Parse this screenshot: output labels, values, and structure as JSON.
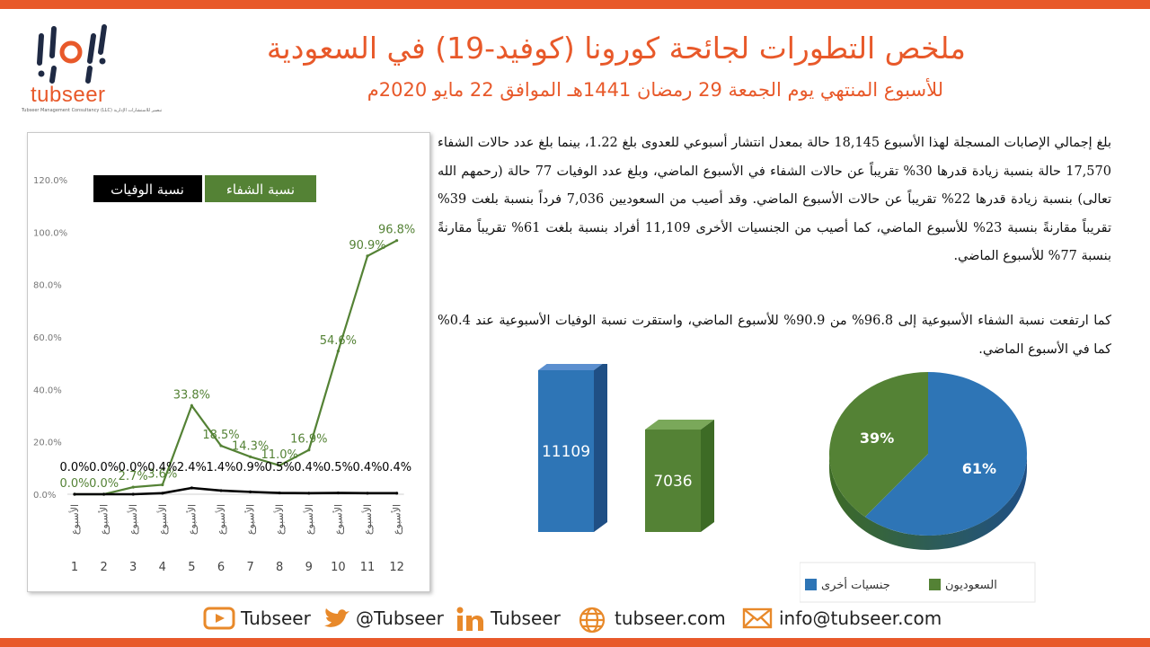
{
  "brand": {
    "name": "tubseer",
    "tagline": "Tubseer Management Consultancy (LLC) تبصير للاستشارات الإدارية"
  },
  "header": {
    "title": "ملخص التطورات لجائحة كورونا (كوفيد-19) في السعودية",
    "subtitle": "للأسبوع المنتهي يوم الجمعة 29 رمضان 1441هـ الموافق 22 مايو 2020م"
  },
  "body": {
    "paragraph1": "بلغ إجمالي الإصابات المسجلة لهذا الأسبوع 18,145 حالة بمعدل انتشار أسبوعي للعدوى بلغ 1.22، بينما بلغ عدد حالات الشفاء 17,570 حالة بنسبة زيادة قدرها 30% تقريباً عن حالات الشفاء في الأسبوع الماضي، وبلغ عدد الوفيات 77 حالة (رحمهم الله تعالى) بنسبة زيادة قدرها 22% تقريباً عن حالات الأسبوع الماضي. وقد أصيب من السعوديين 7,036 فرداً بنسبة بلغت 39% تقريباً مقارنةً بنسبة 23% للأسبوع الماضي، كما أصيب من الجنسيات الأخرى 11,109 أفراد بنسبة بلغت 61% تقريباً مقارنةً بنسبة 77% للأسبوع الماضي.",
    "paragraph2": "كما ارتفعت نسبة الشفاء الأسبوعية إلى 96.8% من 90.9% للأسبوع الماضي، واستقرت نسبة الوفيات الأسبوعية عند 0.4% كما في الأسبوع الماضي."
  },
  "chart_data": [
    {
      "type": "line",
      "x": [
        1,
        2,
        3,
        4,
        5,
        6,
        7,
        8,
        9,
        10,
        11,
        12
      ],
      "x_tick_prefix": "الأسبوع",
      "ylim": [
        0,
        120
      ],
      "y_ticks": [
        "0.0%",
        "20.0%",
        "40.0%",
        "60.0%",
        "80.0%",
        "100.0%",
        "120.0%"
      ],
      "legend_position": "top-left",
      "series": [
        {
          "name": "نسبة الشفاء",
          "color": "#548235",
          "values": [
            0.0,
            0.0,
            2.7,
            3.6,
            33.8,
            18.5,
            14.3,
            11.0,
            16.9,
            54.6,
            90.9,
            96.8
          ],
          "labels": [
            "0.0%",
            "0.0%",
            "2.7%",
            "3.6%",
            "33.8%",
            "18.5%",
            "14.3%",
            "11.0%",
            "16.9%",
            "54.6%",
            "90.9%",
            "96.8%"
          ]
        },
        {
          "name": "نسبة الوفيات",
          "color": "#000000",
          "values": [
            0.0,
            0.0,
            0.0,
            0.4,
            2.4,
            1.4,
            0.9,
            0.5,
            0.4,
            0.5,
            0.4,
            0.4
          ],
          "labels": [
            "0.0%",
            "0.0%",
            "0.0%",
            "0.4%",
            "2.4%",
            "1.4%",
            "0.9%",
            "0.5%",
            "0.4%",
            "0.5%",
            "0.4%",
            "0.4%"
          ]
        }
      ]
    },
    {
      "type": "bar",
      "categories": [
        "جنسيات أخرى",
        "السعوديون"
      ],
      "values": [
        11109,
        7036
      ],
      "colors": [
        "#2e75b6",
        "#548235"
      ]
    },
    {
      "type": "pie",
      "labels": [
        "جنسيات أخرى",
        "السعوديون"
      ],
      "values": [
        61,
        39
      ],
      "value_labels": [
        "61%",
        "39%"
      ],
      "colors": [
        "#2e75b6",
        "#548235"
      ],
      "legend_position": "bottom"
    }
  ],
  "footer": {
    "youtube": "Tubseer",
    "twitter": "@Tubseer",
    "linkedin": "Tubseer",
    "website": "tubseer.com",
    "email": "info@tubseer.com"
  }
}
